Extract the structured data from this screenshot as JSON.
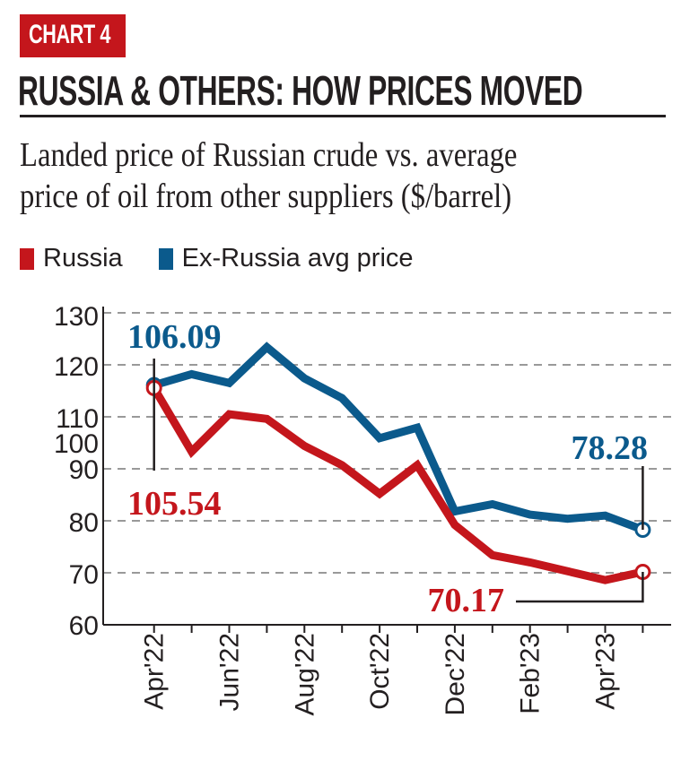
{
  "badge": "CHART 4",
  "title": "RUSSIA & OTHERS: HOW PRICES MOVED",
  "subtitle_line1": "Landed price of Russian crude vs. average",
  "subtitle_line2": "price of oil from other suppliers ($/barrel)",
  "colors": {
    "russia": "#c4161c",
    "ex_russia": "#0b5a8c",
    "badge": "#c4161c"
  },
  "chart_data": {
    "type": "line",
    "x": [
      "Apr'22",
      "May'22",
      "Jun'22",
      "Jul'22",
      "Aug'22",
      "Sep'22",
      "Oct'22",
      "Nov'22",
      "Dec'22",
      "Jan'23",
      "Feb'23",
      "Mar'23",
      "Apr'23",
      "May'23"
    ],
    "x_tick_labels": [
      "Apr'22",
      "Jun'22",
      "Aug'22",
      "Oct'22",
      "Dec'22",
      "Feb'23",
      "Apr'23"
    ],
    "y_tick_labels": [
      "130",
      "120",
      "110",
      "100",
      "90",
      "80",
      "70",
      "60"
    ],
    "ylim": [
      60,
      120
    ],
    "grid": "horizontal dashed",
    "legend": "top-left",
    "series": [
      {
        "name": "Russia",
        "color": "#c4161c",
        "values": [
          105.54,
          93.3,
          100.5,
          99.6,
          94.4,
          90.7,
          85.2,
          90.7,
          79.2,
          73.4,
          72.0,
          70.3,
          68.6,
          70.17
        ]
      },
      {
        "name": "Ex-Russia avg price",
        "color": "#0b5a8c",
        "values": [
          106.09,
          108.2,
          106.5,
          113.4,
          107.4,
          103.6,
          95.9,
          97.9,
          81.8,
          83.2,
          81.2,
          80.4,
          81.0,
          78.28
        ]
      }
    ],
    "annotations": [
      {
        "text": "106.09",
        "series": "Ex-Russia avg price",
        "x": "Apr'22"
      },
      {
        "text": "105.54",
        "series": "Russia",
        "x": "Apr'22"
      },
      {
        "text": "78.28",
        "series": "Ex-Russia avg price",
        "x": "May'23"
      },
      {
        "text": "70.17",
        "series": "Russia",
        "x": "May'23"
      }
    ]
  }
}
